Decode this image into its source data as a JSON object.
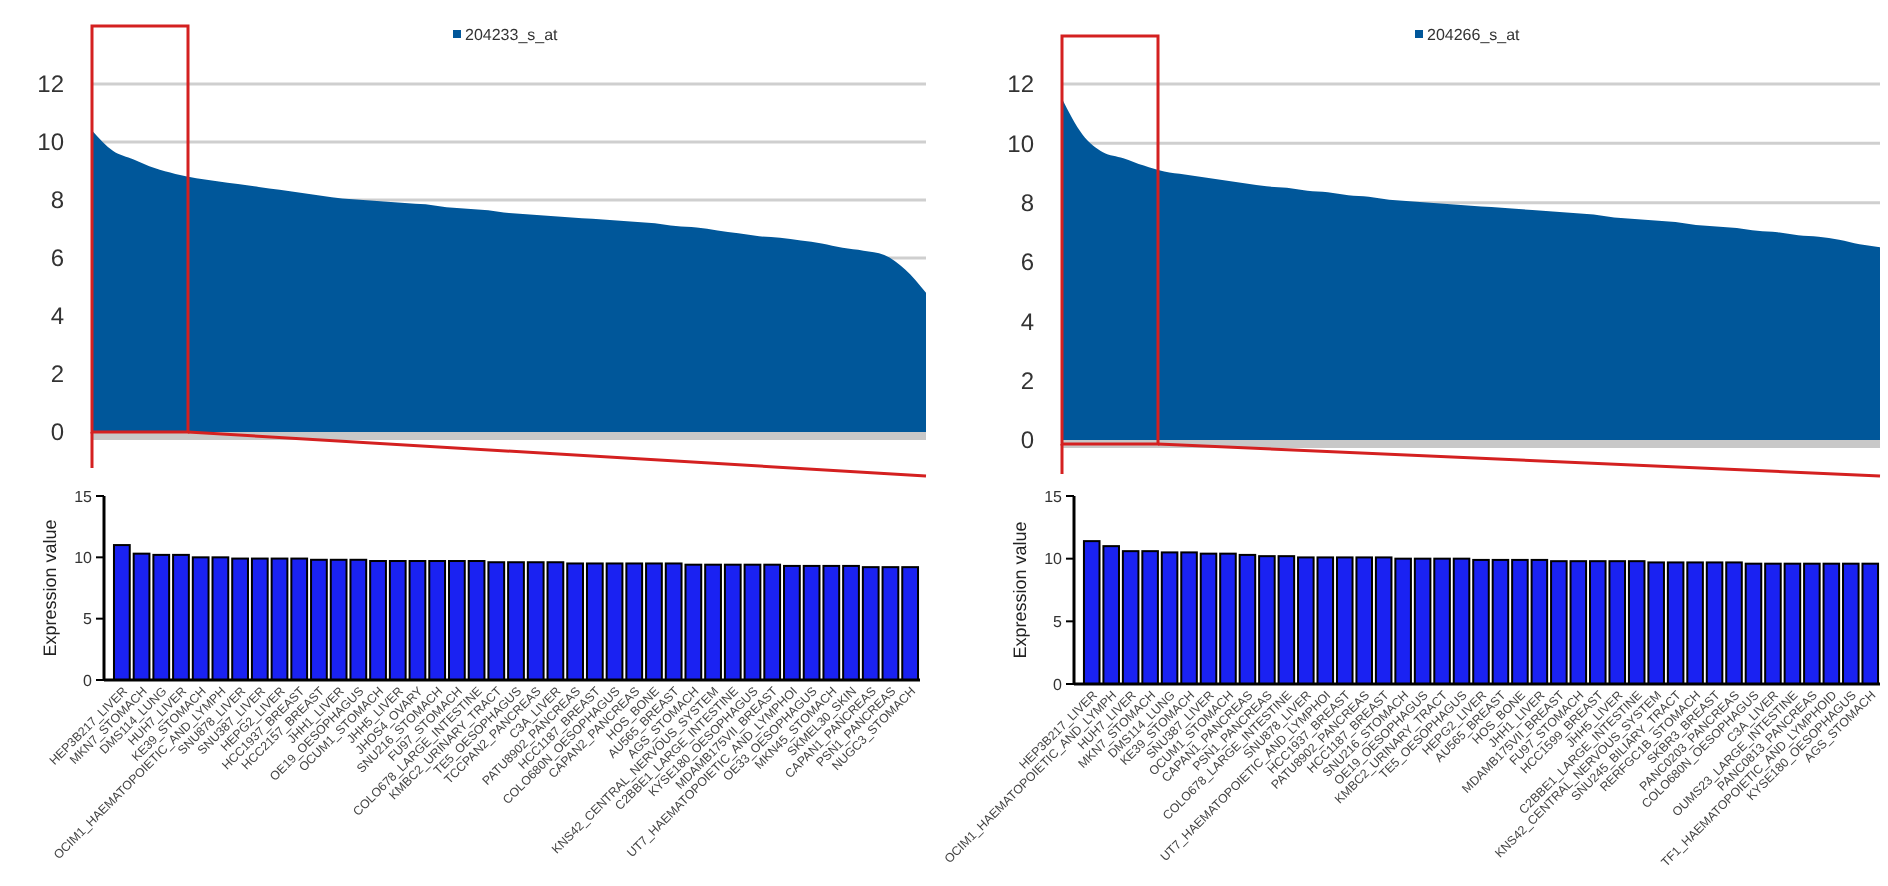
{
  "chart_data": [
    {
      "type": "area",
      "categories": [
        null,
        null,
        null,
        null,
        null,
        null,
        null,
        null,
        null,
        null,
        null,
        null,
        null,
        null,
        null,
        null,
        null,
        null,
        null,
        null,
        null,
        null,
        null,
        null,
        null,
        null,
        null,
        null,
        null,
        null,
        null,
        null,
        null,
        null,
        null,
        null,
        null,
        null,
        null,
        null,
        null
      ],
      "series": [
        {
          "name": "204233_s_at",
          "color": "#00579a",
          "values": [
            10.4,
            9.7,
            9.4,
            9.1,
            8.9,
            8.75,
            8.65,
            8.55,
            8.45,
            8.35,
            8.25,
            8.15,
            8.05,
            8.0,
            7.95,
            7.9,
            7.85,
            7.75,
            7.7,
            7.65,
            7.55,
            7.5,
            7.45,
            7.4,
            7.35,
            7.3,
            7.25,
            7.2,
            7.1,
            7.05,
            6.95,
            6.85,
            6.75,
            6.7,
            6.6,
            6.5,
            6.35,
            6.25,
            6.1,
            5.6,
            4.8
          ]
        }
      ],
      "ylim": [
        0,
        12
      ],
      "yticks": [
        0,
        2,
        4,
        6,
        8,
        10,
        12
      ],
      "grid": "y",
      "legend": "top",
      "tick_labels": "y"
    },
    {
      "type": "area",
      "categories": [
        null,
        null,
        null,
        null,
        null,
        null,
        null,
        null,
        null,
        null,
        null,
        null,
        null,
        null,
        null,
        null,
        null,
        null,
        null,
        null,
        null,
        null,
        null,
        null,
        null,
        null,
        null,
        null,
        null,
        null,
        null,
        null,
        null,
        null,
        null,
        null,
        null,
        null,
        null,
        null,
        null
      ],
      "series": [
        {
          "name": "204266_s_at",
          "color": "#00579a",
          "values": [
            11.5,
            10.3,
            9.7,
            9.5,
            9.25,
            9.05,
            8.95,
            8.85,
            8.75,
            8.65,
            8.55,
            8.5,
            8.4,
            8.35,
            8.25,
            8.2,
            8.1,
            8.05,
            8.0,
            7.95,
            7.9,
            7.85,
            7.8,
            7.75,
            7.7,
            7.65,
            7.6,
            7.5,
            7.45,
            7.4,
            7.35,
            7.25,
            7.2,
            7.15,
            7.05,
            7.0,
            6.9,
            6.85,
            6.75,
            6.6,
            6.5
          ]
        }
      ],
      "ylim": [
        0,
        12
      ],
      "yticks": [
        0,
        2,
        4,
        6,
        8,
        10,
        12
      ],
      "grid": "y",
      "legend": "top",
      "tick_labels": "y"
    },
    {
      "type": "bar",
      "ylabel": "Expression value",
      "color": "#1a22f2",
      "categories": [
        "HEP3B217_LIVER",
        "MKN7_STOMACH",
        "DMS114_LUNG",
        "HUH7_LIVER",
        "KE39_STOMACH",
        "OCIM1_HAEMATOPOIETIC_AND_LYMPH",
        "SNU878_LIVER",
        "SNU387_LIVER",
        "HEPG2_LIVER",
        "HCC1937_BREAST",
        "HCC2157_BREAST",
        "JHH1_LIVER",
        "OE19_OESOPHAGUS",
        "OCUM1_STOMACH",
        "JHH5_LIVER",
        "JHOS4_OVARY",
        "SNU216_STOMACH",
        "FU97_STOMACH",
        "COLO678_LARGE_INTESTINE",
        "KMBC2_URINARY_TRACT",
        "TE5_OESOPHAGUS",
        "TCCPAN2_PANCREAS",
        "C3A_LIVER",
        "PATU8902_PANCREAS",
        "HCC1187_BREAST",
        "COLO680N_OESOPHAGUS",
        "CAPAN2_PANCREAS",
        "HOS_BONE",
        "AU565_BREAST",
        "AGS_STOMACH",
        "KNS42_CENTRAL_NERVOUS_SYSTEM",
        "C2BBE1_LARGE_INTESTINE",
        "KYSE180_OESOPHAGUS",
        "MDAMB175VII_BREAST",
        "UT7_HAEMATOPOIETIC_AND_LYMPHOI",
        "OE33_OESOPHAGUS",
        "MKN45_STOMACH",
        "SKMEL30_SKIN",
        "CAPAN1_PANCREAS",
        "PSN1_PANCREAS",
        "NUGC3_STOMACH"
      ],
      "values": [
        11.0,
        10.3,
        10.2,
        10.2,
        10.0,
        10.0,
        9.9,
        9.9,
        9.9,
        9.9,
        9.8,
        9.8,
        9.8,
        9.7,
        9.7,
        9.7,
        9.7,
        9.7,
        9.7,
        9.6,
        9.6,
        9.6,
        9.6,
        9.5,
        9.5,
        9.5,
        9.5,
        9.5,
        9.5,
        9.4,
        9.4,
        9.4,
        9.4,
        9.4,
        9.3,
        9.3,
        9.3,
        9.3,
        9.2,
        9.2,
        9.2
      ],
      "ylim": [
        0,
        15
      ],
      "yticks": [
        0,
        5,
        10,
        15
      ]
    },
    {
      "type": "bar",
      "ylabel": "Expression value",
      "color": "#1a22f2",
      "categories": [
        "HEP3B217_LIVER",
        "OCIM1_HAEMATOPOIETIC_AND_LYMPH",
        "HUH7_LIVER",
        "MKN7_STOMACH",
        "DMS114_LUNG",
        "KE39_STOMACH",
        "SNU387_LIVER",
        "OCUM1_STOMACH",
        "CAPAN1_PANCREAS",
        "PSN1_PANCREAS",
        "COLO678_LARGE_INTESTINE",
        "SNU878_LIVER",
        "UT7_HAEMATOPOIETIC_AND_LYMPHOI",
        "HCC1937_BREAST",
        "PATU8902_PANCREAS",
        "HCC1187_BREAST",
        "SNU216_STOMACH",
        "OE19_OESOPHAGUS",
        "KMBC2_URINARY_TRACT",
        "TE5_OESOPHAGUS",
        "HEPG2_LIVER",
        "AU565_BREAST",
        "HOS_BONE",
        "JHH1_LIVER",
        "MDAMB175VII_BREAST",
        "FU97_STOMACH",
        "HCC1599_BREAST",
        "JHH5_LIVER",
        "C2BBE1_LARGE_INTESTINE",
        "KNS42_CENTRAL_NERVOUS_SYSTEM",
        "SNU245_BILIARY_TRACT",
        "RERFGC1B_STOMACH",
        "SKBR3_BREAST",
        "PANC0203_PANCREAS",
        "COLO680N_OESOPHAGUS",
        "C3A_LIVER",
        "OUMS23_LARGE_INTESTINE",
        "PANC0813_PANCREAS",
        "TF1_HAEMATOPOIETIC_AND_LYMPHOID",
        "KYSE180_OESOPHAGUS",
        "AGS_STOMACH"
      ],
      "values": [
        11.4,
        11.0,
        10.6,
        10.6,
        10.5,
        10.5,
        10.4,
        10.4,
        10.3,
        10.2,
        10.2,
        10.1,
        10.1,
        10.1,
        10.1,
        10.1,
        10.0,
        10.0,
        10.0,
        10.0,
        9.9,
        9.9,
        9.9,
        9.9,
        9.8,
        9.8,
        9.8,
        9.8,
        9.8,
        9.7,
        9.7,
        9.7,
        9.7,
        9.7,
        9.6,
        9.6,
        9.6,
        9.6,
        9.6,
        9.6,
        9.6
      ],
      "ylim": [
        0,
        15
      ],
      "yticks": [
        0,
        5,
        10,
        15
      ]
    }
  ]
}
